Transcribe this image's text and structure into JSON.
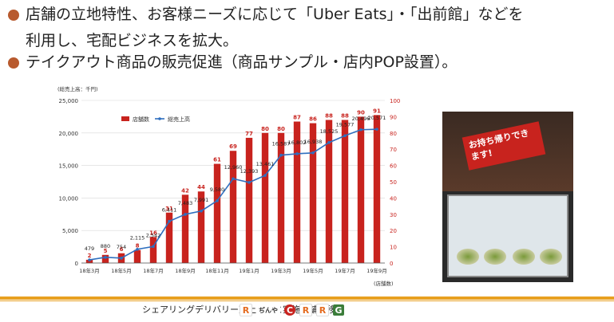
{
  "bullets": [
    {
      "line1": "店舗の立地特性、お客様ニーズに応じて「Uber Eats」・「出前館」などを",
      "line2": "利用し、宅配ビジネスを拡大。"
    },
    {
      "line1": "テイクアウト商品の販売促進（商品サンプル・店内POP設置）。"
    }
  ],
  "colors": {
    "bar": "#c8231e",
    "line": "#2f6fbf",
    "bullet": "#b85a2e",
    "footer": "#e8a021"
  },
  "chart_data": {
    "type": "bar",
    "caption": "シェアリングデリバリー売上推移と実施店舗推移",
    "left_axis_unit": "(総売上高：千円)",
    "right_axis_unit": "(店舗数)",
    "legend": [
      "店舗数",
      "総売上高"
    ],
    "x_tick_labels": [
      "18年3月",
      "18年5月",
      "18年7月",
      "18年9月",
      "18年11月",
      "19年1月",
      "19年3月",
      "19年5月",
      "19年7月",
      "19年9月"
    ],
    "ylim_left": [
      0,
      25000
    ],
    "ylim_right": [
      0,
      100
    ],
    "y_ticks_left": [
      "0",
      "5,000",
      "10,000",
      "15,000",
      "20,000",
      "25,000"
    ],
    "y_ticks_right": [
      "0",
      "10",
      "20",
      "30",
      "40",
      "50",
      "60",
      "70",
      "80",
      "90",
      "100"
    ],
    "series": [
      {
        "name": "店舗数",
        "axis": "right",
        "values": [
          2,
          5,
          6,
          8,
          16,
          31,
          42,
          44,
          61,
          69,
          77,
          80,
          80,
          87,
          86,
          88,
          88,
          90,
          91
        ]
      },
      {
        "name": "総売上高",
        "axis": "left",
        "values": [
          479,
          880,
          754,
          2115,
          2542,
          6411,
          7483,
          7991,
          9580,
          12960,
          12393,
          13461,
          16587,
          16802,
          16938,
          18525,
          19577,
          20496,
          20571
        ]
      }
    ],
    "sales_labels": [
      "479",
      "880",
      "754",
      "2,115",
      "2,542",
      "6,411",
      "7,483",
      "7,991",
      "9,580",
      "12,960",
      "12,393",
      "13,461",
      "16,587",
      "16,802",
      "16,938",
      "18,525",
      "19,577",
      "20,496",
      "20,571"
    ],
    "store_labels": [
      "2",
      "5",
      "6",
      "8",
      "16",
      "31",
      "42",
      "44",
      "61",
      "69",
      "77",
      "80",
      "80",
      "87",
      "86",
      "88",
      "88",
      "90",
      "91"
    ]
  },
  "photo": {
    "sign_text": "お持ち帰りできます!"
  },
  "footer": {
    "logos": [
      "R",
      "ぢんや",
      "C",
      "R",
      "R",
      "G"
    ]
  }
}
